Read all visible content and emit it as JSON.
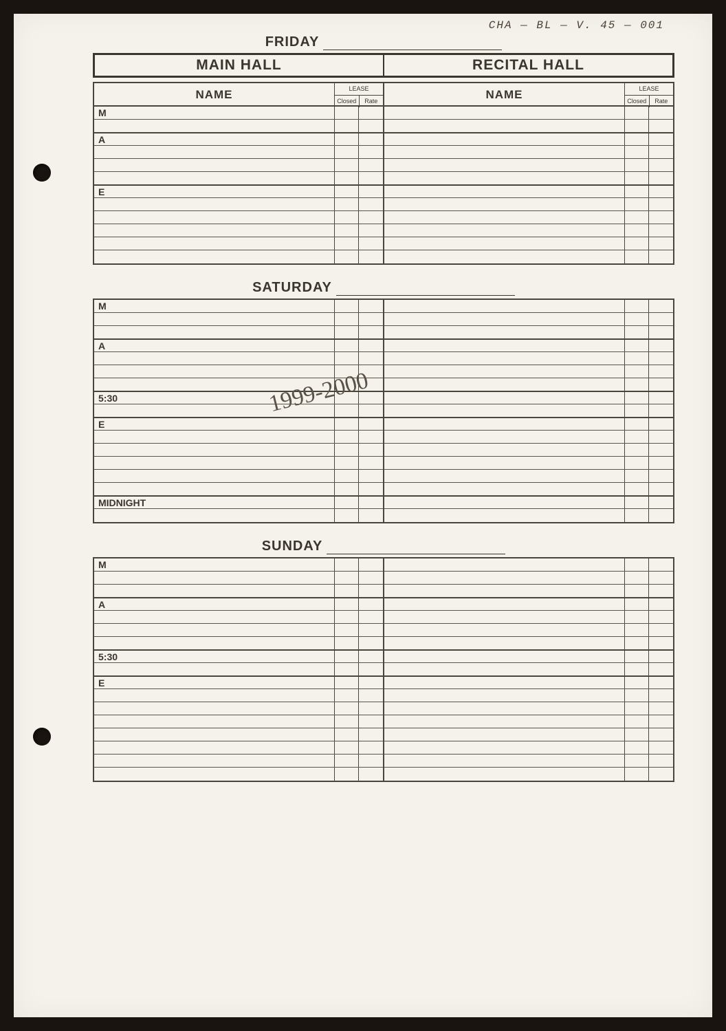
{
  "archive_ref": "CHA — BL — V. 45 — 001",
  "headers": {
    "main_hall": "MAIN HALL",
    "recital_hall": "RECITAL HALL",
    "name": "NAME",
    "lease": "LEASE",
    "closed": "Closed",
    "rate": "Rate"
  },
  "handwritten": "1999-2000",
  "days": [
    {
      "title": "FRIDAY",
      "show_hall_header": true,
      "show_col_head": true,
      "sections": [
        {
          "label": "M",
          "rows": 2
        },
        {
          "label": "A",
          "rows": 4
        },
        {
          "label": "E",
          "rows": 6
        }
      ]
    },
    {
      "title": "SATURDAY",
      "show_hall_header": false,
      "show_col_head": false,
      "sections": [
        {
          "label": "M",
          "rows": 3
        },
        {
          "label": "A",
          "rows": 4
        },
        {
          "label": "5:30",
          "rows": 2
        },
        {
          "label": "E",
          "rows": 6
        },
        {
          "label": "MIDNIGHT",
          "rows": 2
        }
      ]
    },
    {
      "title": "SUNDAY",
      "show_hall_header": false,
      "show_col_head": false,
      "sections": [
        {
          "label": "M",
          "rows": 3
        },
        {
          "label": "A",
          "rows": 4
        },
        {
          "label": "5:30",
          "rows": 2
        },
        {
          "label": "E",
          "rows": 8
        }
      ]
    }
  ],
  "colors": {
    "page_bg": "#f5f1eb",
    "outer_bg": "#1a1410",
    "ink": "#3a352d",
    "rule": "#5a554a"
  }
}
